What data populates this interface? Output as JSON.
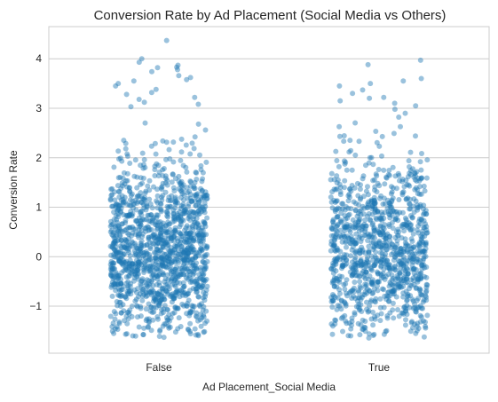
{
  "chart_data": {
    "type": "scatter",
    "style": "strip",
    "title": "Conversion Rate by Ad Placement (Social Media vs Others)",
    "xlabel": "Ad Placement_Social Media",
    "ylabel": "Conversion Rate",
    "categories": [
      "False",
      "True"
    ],
    "yticks": [
      {
        "value": 4,
        "label": "4"
      },
      {
        "value": 3,
        "label": "3"
      },
      {
        "value": 2,
        "label": "2"
      },
      {
        "value": 1,
        "label": "1"
      },
      {
        "value": 0,
        "label": "0"
      },
      {
        "value": -1,
        "label": "−1"
      }
    ],
    "ylim": [
      -1.95,
      4.65
    ],
    "grid": "horizontal",
    "color": "#1f77b4",
    "series": [
      {
        "category": "False",
        "min": -1.65,
        "max": 4.37,
        "outliers": [
          4.37,
          4.0,
          3.93,
          3.87,
          3.83,
          3.82,
          3.78,
          3.74,
          3.66,
          3.62,
          3.58,
          3.55,
          3.5,
          3.45,
          3.38,
          3.32,
          3.28,
          3.22,
          3.18,
          3.12,
          3.08,
          3.03
        ]
      },
      {
        "category": "True",
        "min": -1.65,
        "max": 3.97,
        "outliers": [
          3.97,
          3.88,
          3.6,
          3.55,
          3.5,
          3.45,
          3.37,
          3.3,
          3.22,
          3.2,
          3.15,
          3.1,
          3.05,
          2.98,
          2.9,
          2.82
        ]
      }
    ]
  }
}
